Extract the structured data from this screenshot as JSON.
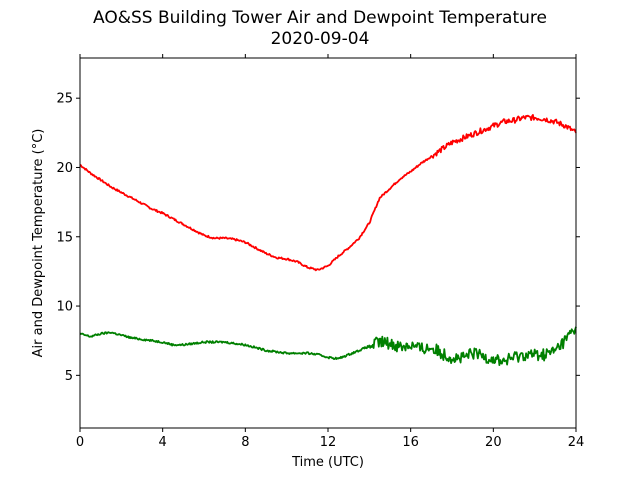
{
  "chart_data": {
    "type": "line",
    "title": "AO&SS Building Tower Air and Dewpoint Temperature",
    "subtitle": "2020-09-04",
    "xlabel": "Time (UTC)",
    "ylabel": "Air and Dewpoint Temperature (°C)",
    "xlim": [
      0,
      24
    ],
    "ylim": [
      1.2,
      27.9
    ],
    "xticks": [
      0,
      4,
      8,
      12,
      16,
      20,
      24
    ],
    "yticks": [
      5,
      10,
      15,
      20,
      25
    ],
    "grid": false,
    "legend": "none",
    "series": [
      {
        "color": "#ff0000",
        "x": [
          0,
          0.5,
          1,
          1.5,
          2,
          2.5,
          3,
          3.5,
          4,
          4.5,
          5,
          5.5,
          6,
          6.5,
          7,
          7.5,
          8,
          8.5,
          9,
          9.5,
          10,
          10.5,
          11,
          11.5,
          12,
          12.5,
          13,
          13.5,
          14,
          14.5,
          15,
          15.5,
          16,
          16.5,
          17,
          17.5,
          18,
          18.5,
          19,
          19.5,
          20,
          20.5,
          21,
          21.5,
          22,
          22.5,
          23,
          23.5,
          24
        ],
        "values": [
          20.2,
          19.6,
          19.1,
          18.6,
          18.2,
          17.8,
          17.4,
          17.0,
          16.7,
          16.3,
          15.9,
          15.5,
          15.1,
          14.9,
          14.9,
          14.8,
          14.6,
          14.2,
          13.8,
          13.5,
          13.4,
          13.2,
          12.8,
          12.6,
          12.9,
          13.6,
          14.2,
          14.9,
          16.0,
          17.8,
          18.5,
          19.2,
          19.7,
          20.3,
          20.8,
          21.3,
          21.8,
          22.1,
          22.4,
          22.7,
          23.0,
          23.3,
          23.4,
          23.6,
          23.6,
          23.5,
          23.3,
          23.0,
          22.5
        ]
      },
      {
        "color": "#008000",
        "x": [
          0,
          0.5,
          1,
          1.5,
          2,
          2.5,
          3,
          3.5,
          4,
          4.5,
          5,
          5.5,
          6,
          6.5,
          7,
          7.5,
          8,
          8.5,
          9,
          9.5,
          10,
          10.5,
          11,
          11.5,
          12,
          12.5,
          13,
          13.5,
          14,
          14.5,
          15,
          15.5,
          16,
          16.5,
          17,
          17.5,
          18,
          18.5,
          19,
          19.5,
          20,
          20.5,
          21,
          21.5,
          22,
          22.5,
          23,
          23.5,
          24
        ],
        "values": [
          8.0,
          7.8,
          8.0,
          8.1,
          7.9,
          7.7,
          7.6,
          7.5,
          7.4,
          7.2,
          7.2,
          7.3,
          7.4,
          7.4,
          7.4,
          7.3,
          7.2,
          7.0,
          6.8,
          6.7,
          6.6,
          6.6,
          6.6,
          6.5,
          6.3,
          6.2,
          6.5,
          6.8,
          7.1,
          7.4,
          7.3,
          7.1,
          7.2,
          6.9,
          7.0,
          6.6,
          6.3,
          6.2,
          6.6,
          6.4,
          6.2,
          6.0,
          6.3,
          6.5,
          6.5,
          6.5,
          6.8,
          7.6,
          8.5
        ]
      }
    ]
  }
}
